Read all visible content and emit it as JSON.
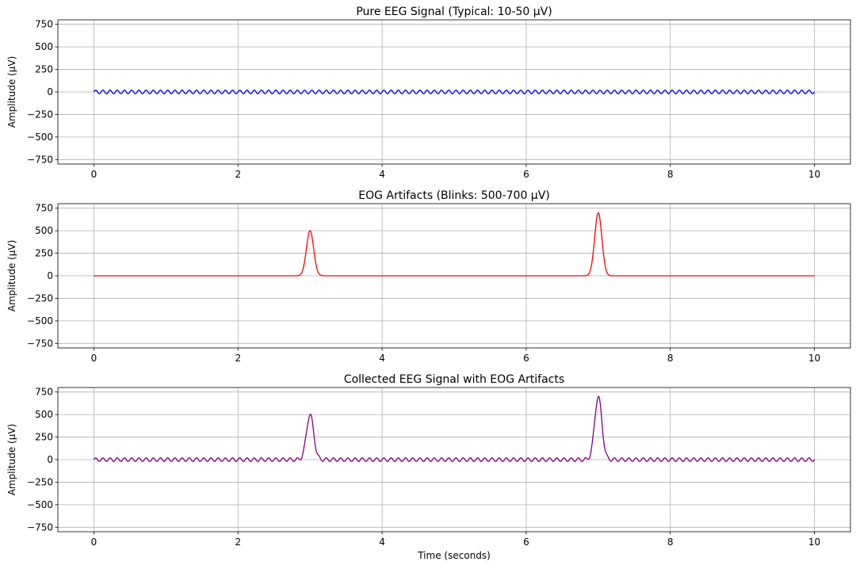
{
  "chart_data": [
    {
      "type": "line",
      "title": "Pure EEG Signal (Typical: 10-50 μV)",
      "xlabel": "",
      "ylabel": "Amplitude (μV)",
      "xlim": [
        -0.5,
        10.5
      ],
      "ylim": [
        -800,
        800
      ],
      "xticks": [
        "0",
        "2",
        "4",
        "6",
        "8",
        "10"
      ],
      "yticks": [
        "750",
        "500",
        "250",
        "0",
        "−250",
        "−500",
        "−750"
      ],
      "grid": true,
      "color": "#0000ff",
      "series": [
        {
          "baseline": 0,
          "oscillation_amplitude": 20,
          "oscillation_frequency_hz": 10,
          "x_range": [
            0,
            10
          ],
          "peaks": []
        }
      ]
    },
    {
      "type": "line",
      "title": "EOG Artifacts (Blinks: 500-700 μV)",
      "xlabel": "",
      "ylabel": "Amplitude (μV)",
      "xlim": [
        -0.5,
        10.5
      ],
      "ylim": [
        -800,
        800
      ],
      "xticks": [
        "0",
        "2",
        "4",
        "6",
        "8",
        "10"
      ],
      "yticks": [
        "750",
        "500",
        "250",
        "0",
        "−250",
        "−500",
        "−750"
      ],
      "grid": true,
      "color": "#ff0000",
      "series": [
        {
          "baseline": 0,
          "oscillation_amplitude": 0,
          "oscillation_frequency_hz": 0,
          "x_range": [
            0,
            10
          ],
          "peaks": [
            {
              "t": 3.0,
              "amplitude": 500,
              "width": 0.05
            },
            {
              "t": 7.0,
              "amplitude": 700,
              "width": 0.05
            }
          ]
        }
      ]
    },
    {
      "type": "line",
      "title": "Collected EEG Signal with EOG Artifacts",
      "xlabel": "Time (seconds)",
      "ylabel": "Amplitude (μV)",
      "xlim": [
        -0.5,
        10.5
      ],
      "ylim": [
        -800,
        800
      ],
      "xticks": [
        "0",
        "2",
        "4",
        "6",
        "8",
        "10"
      ],
      "yticks": [
        "750",
        "500",
        "250",
        "0",
        "−250",
        "−500",
        "−750"
      ],
      "grid": true,
      "color": "#800080",
      "series": [
        {
          "baseline": 0,
          "oscillation_amplitude": 20,
          "oscillation_frequency_hz": 10,
          "x_range": [
            0,
            10
          ],
          "peaks": [
            {
              "t": 3.0,
              "amplitude": 500,
              "width": 0.05
            },
            {
              "t": 7.0,
              "amplitude": 700,
              "width": 0.05
            }
          ]
        }
      ]
    }
  ]
}
